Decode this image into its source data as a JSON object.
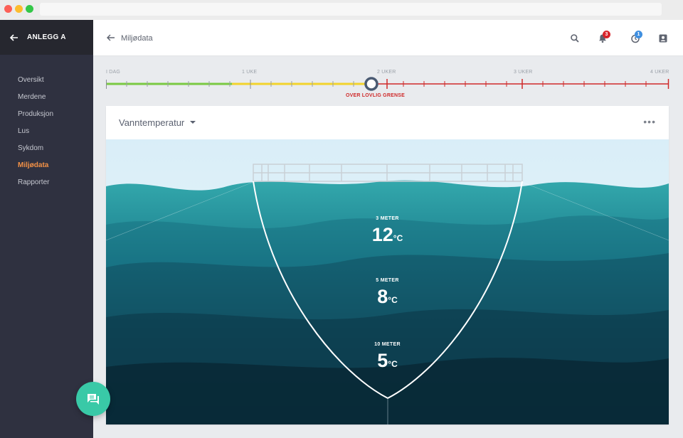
{
  "app": {
    "site_name": "ANLEGG A"
  },
  "sidebar": {
    "items": [
      {
        "label": "Oversikt",
        "active": false
      },
      {
        "label": "Merdene",
        "active": false
      },
      {
        "label": "Produksjon",
        "active": false
      },
      {
        "label": "Lus",
        "active": false
      },
      {
        "label": "Sykdom",
        "active": false
      },
      {
        "label": "Miljødata",
        "active": true
      },
      {
        "label": "Rapporter",
        "active": false
      }
    ]
  },
  "header": {
    "title": "Miljødata",
    "notifications_count": "3",
    "history_count": "1"
  },
  "timeline": {
    "labels": [
      "I DAG",
      "1 UKE",
      "2 UKER",
      "3 UKER",
      "4 UKER"
    ],
    "warning": "OVER LOVLIG GRENSE"
  },
  "card": {
    "title": "Vanntemperatur",
    "menu": "•••",
    "depths": [
      {
        "label": "3 METER",
        "value": "12",
        "unit": "°C"
      },
      {
        "label": "5 METER",
        "value": "8",
        "unit": "°C"
      },
      {
        "label": "10 METER",
        "value": "5",
        "unit": "°C"
      }
    ]
  },
  "colors": {
    "accent": "#f39146",
    "sidebar": "#2f3140",
    "fab": "#39c9a7",
    "timeline_green": "#7ac943",
    "timeline_yellow": "#f2d32c",
    "timeline_red": "#cf2a2a"
  }
}
